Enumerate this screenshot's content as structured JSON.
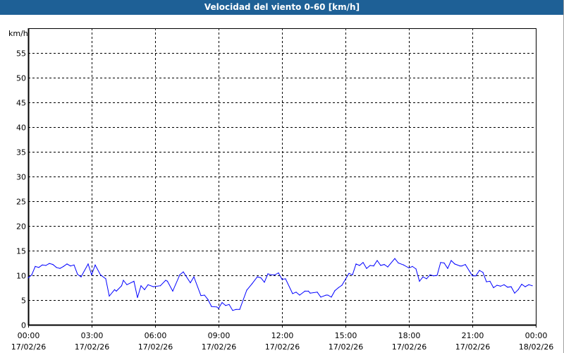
{
  "title": "Velocidad del viento 0-60 [km/h]",
  "colors": {
    "title_bar": "#1e6096",
    "series": "#0000ff",
    "grid": "#000000"
  },
  "chart_data": {
    "type": "line",
    "title": "Velocidad del viento 0-60 [km/h]",
    "ylabel": "km/h",
    "ylim": [
      0,
      60
    ],
    "yticks": [
      "0",
      "5",
      "10",
      "15",
      "20",
      "25",
      "30",
      "35",
      "40",
      "45",
      "50",
      "55"
    ],
    "xlim": [
      "17/02/26 00:00",
      "18/02/26 00:00"
    ],
    "xticks": [
      {
        "time": "00:00",
        "date": "17/02/26"
      },
      {
        "time": "03:00",
        "date": "17/02/26"
      },
      {
        "time": "06:00",
        "date": "17/02/26"
      },
      {
        "time": "09:00",
        "date": "17/02/26"
      },
      {
        "time": "12:00",
        "date": "17/02/26"
      },
      {
        "time": "15:00",
        "date": "17/02/26"
      },
      {
        "time": "18:00",
        "date": "17/02/26"
      },
      {
        "time": "21:00",
        "date": "17/02/26"
      },
      {
        "time": "00:00",
        "date": "18/02/26"
      }
    ],
    "grid": true,
    "grid_style": "dashed",
    "series": [
      {
        "x": [
          "00:00",
          "00:10",
          "00:20",
          "00:30",
          "00:40",
          "00:50",
          "01:00",
          "01:10",
          "01:20",
          "01:30",
          "01:40",
          "01:50",
          "02:00",
          "02:10",
          "02:20",
          "02:30",
          "02:50",
          "03:00",
          "03:10",
          "03:25",
          "03:40",
          "03:50",
          "04:05",
          "04:10",
          "04:25",
          "04:30",
          "04:40",
          "05:00",
          "05:10",
          "05:20",
          "05:30",
          "05:40",
          "05:55",
          "06:15",
          "06:30",
          "06:35",
          "06:50",
          "07:10",
          "07:20",
          "07:40",
          "07:50",
          "08:10",
          "08:20",
          "08:30",
          "08:40",
          "08:55",
          "09:00",
          "09:10",
          "09:20",
          "09:30",
          "09:40",
          "09:50",
          "10:00",
          "10:20",
          "10:35",
          "10:50",
          "11:00",
          "11:10",
          "11:20",
          "11:30",
          "11:40",
          "11:50",
          "12:00",
          "12:10",
          "12:30",
          "12:40",
          "12:50",
          "13:05",
          "13:15",
          "13:20",
          "13:40",
          "13:50",
          "14:05",
          "14:10",
          "14:20",
          "14:30",
          "14:40",
          "14:50",
          "15:10",
          "15:20",
          "15:30",
          "15:40",
          "15:50",
          "16:00",
          "16:10",
          "16:20",
          "16:30",
          "16:40",
          "16:50",
          "17:00",
          "17:20",
          "17:30",
          "17:45",
          "18:00",
          "18:10",
          "18:20",
          "18:30",
          "18:40",
          "18:50",
          "19:00",
          "19:10",
          "19:20",
          "19:30",
          "19:40",
          "19:50",
          "20:00",
          "20:10",
          "20:25",
          "20:30",
          "20:40",
          "21:00",
          "21:10",
          "21:20",
          "21:30",
          "21:40",
          "21:50",
          "22:00",
          "22:10",
          "22:20",
          "22:30",
          "22:40",
          "22:50",
          "23:00",
          "23:10",
          "23:20",
          "23:30",
          "23:40",
          "23:50"
        ],
        "values": [
          9.5,
          10.1,
          11.8,
          11.6,
          12.1,
          12.0,
          12.4,
          12.2,
          11.6,
          11.4,
          11.8,
          12.3,
          11.9,
          12.1,
          10.2,
          9.7,
          12.3,
          10.1,
          12.1,
          10.1,
          9.3,
          5.8,
          7.1,
          6.8,
          7.9,
          9.0,
          8.1,
          8.8,
          5.5,
          7.9,
          7.1,
          8.1,
          7.7,
          7.9,
          9.0,
          8.8,
          6.8,
          10.1,
          10.7,
          8.5,
          9.7,
          5.9,
          6.0,
          5.1,
          3.7,
          3.6,
          3.3,
          4.5,
          3.9,
          4.1,
          2.9,
          3.1,
          3.1,
          7.0,
          8.3,
          9.7,
          9.5,
          8.6,
          10.3,
          10.1,
          10.1,
          10.5,
          9.2,
          9.3,
          6.3,
          6.6,
          6.0,
          6.8,
          6.8,
          6.4,
          6.6,
          5.6,
          6.0,
          6.0,
          5.6,
          6.9,
          7.5,
          8.0,
          10.4,
          10.1,
          12.3,
          12.0,
          12.6,
          11.4,
          12.0,
          11.9,
          13.0,
          12.0,
          12.2,
          11.7,
          13.4,
          12.5,
          12.1,
          11.5,
          11.8,
          11.3,
          8.8,
          9.7,
          9.3,
          10.1,
          9.9,
          10.0,
          12.6,
          12.5,
          11.4,
          13.0,
          12.3,
          11.9,
          11.9,
          12.2,
          9.9,
          9.9,
          11.0,
          10.6,
          8.7,
          8.8,
          7.5,
          8.0,
          7.8,
          8.1,
          7.6,
          7.7,
          6.4,
          7.1,
          8.2,
          7.7,
          8.1,
          7.9
        ]
      }
    ]
  }
}
